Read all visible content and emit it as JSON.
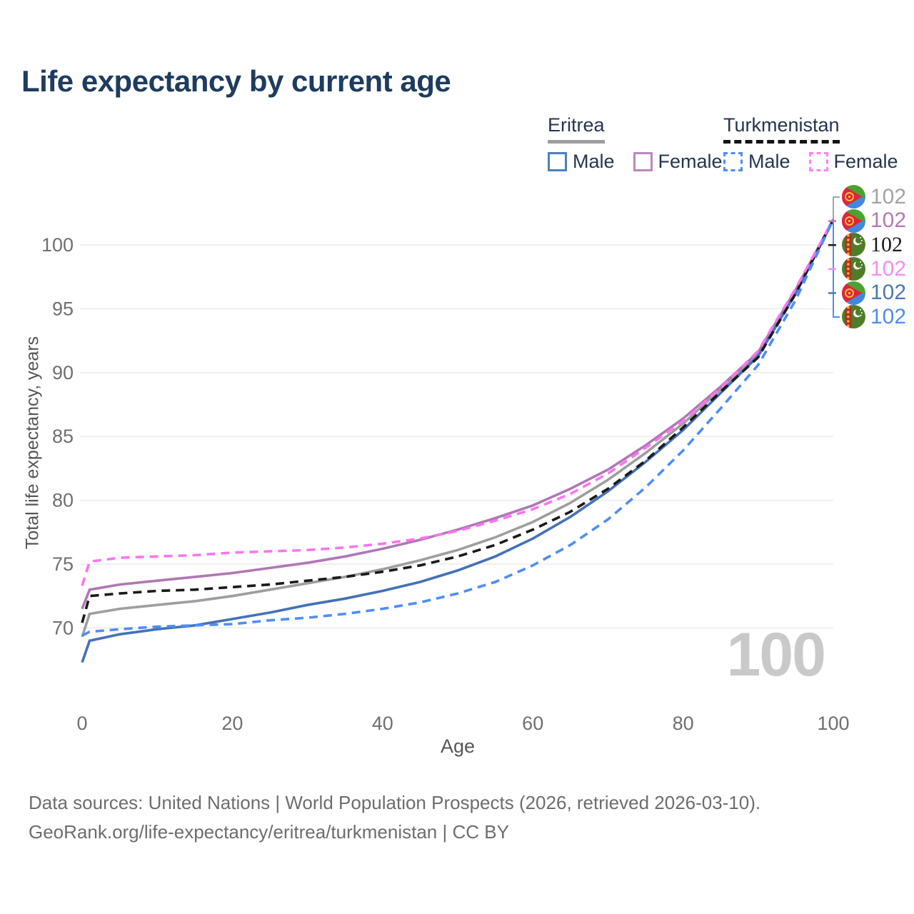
{
  "title": "Life expectancy by current age",
  "legend": {
    "groups": [
      {
        "label": "Eritrea",
        "line_style": "solid",
        "line_color": "#9e9e9e",
        "items": [
          {
            "label": "Male",
            "color": "#4e7ec0"
          },
          {
            "label": "Female",
            "color": "#bd86c2"
          }
        ]
      },
      {
        "label": "Turkmenistan",
        "line_style": "dashed",
        "line_color": "#141414",
        "items": [
          {
            "label": "Male",
            "color": "#4f8df7"
          },
          {
            "label": "Female",
            "color": "#fc83f3"
          }
        ]
      }
    ]
  },
  "chart_data": {
    "type": "line",
    "title": "Life expectancy by current age",
    "xlabel": "Age",
    "ylabel": "Total life expectancy, years",
    "watermark": "100",
    "xticks": [
      0,
      20,
      40,
      60,
      80,
      100
    ],
    "yticks": [
      70,
      75,
      80,
      85,
      90,
      95,
      100
    ],
    "xlim": [
      0,
      100
    ],
    "ylim": [
      66.5,
      103
    ],
    "grid": "horizontal",
    "legend_position": "top-right",
    "ages": [
      0,
      1,
      5,
      10,
      15,
      20,
      25,
      30,
      35,
      40,
      45,
      50,
      55,
      60,
      65,
      70,
      75,
      80,
      85,
      90,
      95,
      100
    ],
    "series": [
      {
        "id": "eritrea-both",
        "name": "Eritrea (both sexes)",
        "color": "#9e9e9e",
        "dash": "solid",
        "values": [
          69.3,
          71.1,
          71.5,
          71.8,
          72.1,
          72.5,
          73.0,
          73.5,
          74.0,
          74.6,
          75.3,
          76.1,
          77.1,
          78.3,
          79.8,
          81.6,
          83.7,
          86.0,
          88.7,
          91.4,
          96.3,
          102
        ]
      },
      {
        "id": "eritrea-female",
        "name": "Eritrea Female",
        "color": "#b077b6",
        "dash": "solid",
        "values": [
          71.5,
          73.0,
          73.4,
          73.7,
          74.0,
          74.3,
          74.7,
          75.1,
          75.6,
          76.2,
          76.9,
          77.7,
          78.6,
          79.6,
          80.9,
          82.4,
          84.3,
          86.4,
          88.9,
          91.6,
          96.5,
          102
        ]
      },
      {
        "id": "eritrea-male",
        "name": "Eritrea Male",
        "color": "#4472b9",
        "dash": "solid",
        "values": [
          67.3,
          69.0,
          69.5,
          69.9,
          70.2,
          70.7,
          71.2,
          71.8,
          72.3,
          72.9,
          73.6,
          74.5,
          75.6,
          77.0,
          78.7,
          80.7,
          83.0,
          85.5,
          88.4,
          91.3,
          96.2,
          102
        ]
      },
      {
        "id": "turkmenistan-both",
        "name": "Turkmenistan (both sexes)",
        "color": "#1a1a1a",
        "dash": "dashed",
        "values": [
          70.4,
          72.5,
          72.7,
          72.9,
          73.0,
          73.2,
          73.4,
          73.7,
          74.0,
          74.4,
          74.9,
          75.6,
          76.5,
          77.7,
          79.1,
          80.9,
          83.1,
          85.7,
          88.5,
          91.2,
          96.2,
          102
        ]
      },
      {
        "id": "turkmenistan-female",
        "name": "Turkmenistan Female",
        "color": "#fb75f0",
        "dash": "dashed",
        "values": [
          73.3,
          75.2,
          75.5,
          75.6,
          75.7,
          75.9,
          76.0,
          76.1,
          76.3,
          76.6,
          77.0,
          77.6,
          78.4,
          79.3,
          80.5,
          82.1,
          84.1,
          86.2,
          88.8,
          91.7,
          96.6,
          102
        ]
      },
      {
        "id": "turkmenistan-male",
        "name": "Turkmenistan Male",
        "color": "#4f8df7",
        "dash": "dashed",
        "values": [
          69.4,
          69.7,
          69.9,
          70.1,
          70.2,
          70.3,
          70.6,
          70.8,
          71.1,
          71.5,
          72.0,
          72.7,
          73.6,
          74.9,
          76.5,
          78.5,
          81.0,
          83.9,
          87.2,
          90.6,
          95.7,
          102
        ]
      }
    ],
    "end_labels": [
      {
        "flag": "eritrea",
        "value": "102",
        "color": "#a3a3a3"
      },
      {
        "flag": "eritrea",
        "value": "102",
        "color": "#b678b6"
      },
      {
        "flag": "turkmenistan",
        "value": "102",
        "color": "#1a1a1a",
        "emphasized": true
      },
      {
        "flag": "turkmenistan",
        "value": "102",
        "color": "#fc8af4"
      },
      {
        "flag": "eritrea",
        "value": "102",
        "color": "#4a78b5"
      },
      {
        "flag": "turkmenistan",
        "value": "102",
        "color": "#4e8ef2"
      }
    ]
  },
  "footer": {
    "line1": "Data sources: United Nations | World Population Prospects (2026, retrieved 2026-03-10).",
    "line2": "GeoRank.org/life-expectancy/eritrea/turkmenistan | CC BY"
  }
}
